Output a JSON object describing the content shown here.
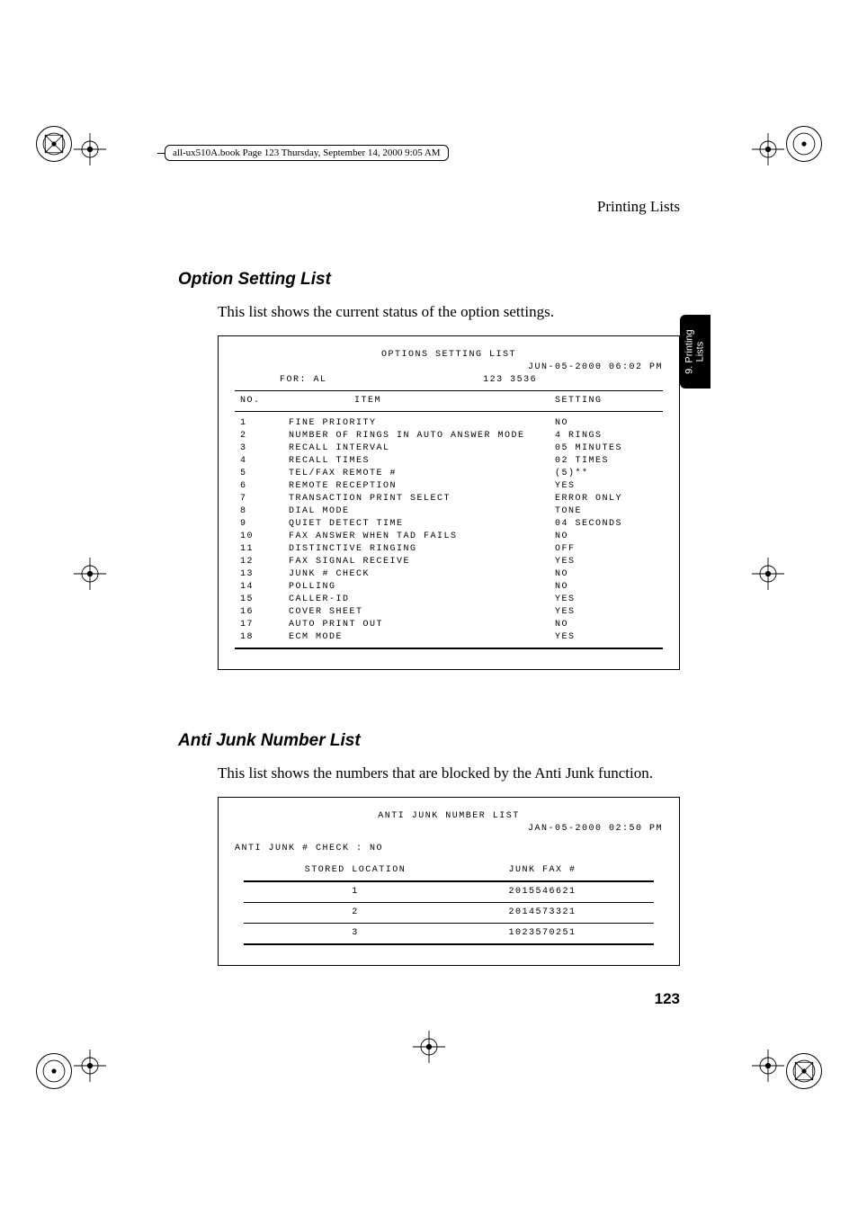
{
  "header_box": "all-ux510A.book  Page 123  Thursday, September 14, 2000  9:05 AM",
  "running_head": "Printing Lists",
  "side_tab_line1": "9. Printing",
  "side_tab_line2": "Lists",
  "section1": {
    "heading": "Option Setting List",
    "body": "This list shows the current status of the option settings.",
    "printout": {
      "title": "OPTIONS SETTING LIST",
      "date": "JUN-05-2000 06:02 PM",
      "for_label": "FOR: AL",
      "for_number": "123 3536",
      "col_no": "NO.",
      "col_item": "ITEM",
      "col_setting": "SETTING",
      "rows": [
        {
          "no": "1",
          "item": "FINE PRIORITY",
          "setting": "NO"
        },
        {
          "no": "2",
          "item": "NUMBER OF RINGS IN AUTO ANSWER MODE",
          "setting": "4 RINGS"
        },
        {
          "no": "3",
          "item": "RECALL INTERVAL",
          "setting": "05 MINUTES"
        },
        {
          "no": "4",
          "item": "RECALL TIMES",
          "setting": "02 TIMES"
        },
        {
          "no": "5",
          "item": "TEL/FAX REMOTE #",
          "setting": "(5)**"
        },
        {
          "no": "6",
          "item": "REMOTE RECEPTION",
          "setting": "YES"
        },
        {
          "no": "7",
          "item": "TRANSACTION PRINT SELECT",
          "setting": "ERROR ONLY"
        },
        {
          "no": "8",
          "item": "DIAL MODE",
          "setting": "TONE"
        },
        {
          "no": "9",
          "item": "QUIET DETECT TIME",
          "setting": "04 SECONDS"
        },
        {
          "no": "10",
          "item": "FAX ANSWER WHEN TAD FAILS",
          "setting": "NO"
        },
        {
          "no": "11",
          "item": "DISTINCTIVE RINGING",
          "setting": "OFF"
        },
        {
          "no": "12",
          "item": "FAX SIGNAL RECEIVE",
          "setting": "YES"
        },
        {
          "no": "13",
          "item": "JUNK # CHECK",
          "setting": "NO"
        },
        {
          "no": "14",
          "item": "POLLING",
          "setting": "NO"
        },
        {
          "no": "15",
          "item": "CALLER-ID",
          "setting": "YES"
        },
        {
          "no": "16",
          "item": "COVER SHEET",
          "setting": "YES"
        },
        {
          "no": "17",
          "item": "AUTO PRINT OUT",
          "setting": "NO"
        },
        {
          "no": "18",
          "item": "ECM MODE",
          "setting": "YES"
        }
      ]
    }
  },
  "section2": {
    "heading": "Anti Junk Number List",
    "body": "This list shows the numbers that are blocked by the Anti Junk function.",
    "printout": {
      "title": "ANTI JUNK NUMBER LIST",
      "date": "JAN-05-2000 02:50 PM",
      "check_line": "ANTI JUNK # CHECK : NO",
      "col_loc": "STORED LOCATION",
      "col_fax": "JUNK FAX #",
      "rows": [
        {
          "loc": "1",
          "fax": "2015546621"
        },
        {
          "loc": "2",
          "fax": "2014573321"
        },
        {
          "loc": "3",
          "fax": "1023570251"
        }
      ]
    }
  },
  "page_number": "123"
}
